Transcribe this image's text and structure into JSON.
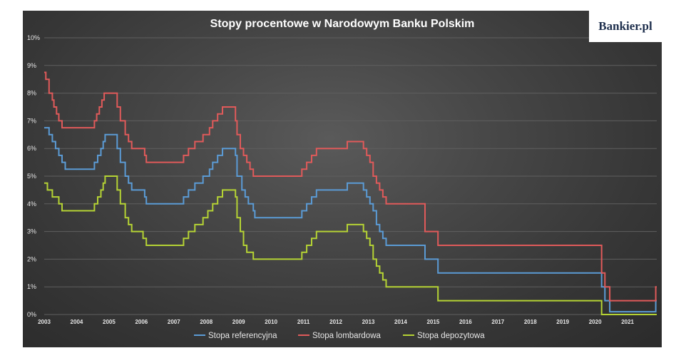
{
  "chart_data": {
    "type": "line",
    "title": "Stopy procentowe w Narodowym Banku Polskim",
    "xlabel": "",
    "ylabel": "",
    "xlim": [
      2003,
      2021.9
    ],
    "ylim": [
      0,
      10
    ],
    "y_ticks": [
      "0%",
      "1%",
      "2%",
      "3%",
      "4%",
      "5%",
      "6%",
      "7%",
      "8%",
      "9%",
      "10%"
    ],
    "x_ticks": [
      "2003",
      "2004",
      "2005",
      "2006",
      "2007",
      "2008",
      "2009",
      "2010",
      "2011",
      "2012",
      "2013",
      "2014",
      "2015",
      "2016",
      "2017",
      "2018",
      "2019",
      "2020",
      "2021"
    ],
    "grid": true,
    "legend_position": "bottom",
    "line_style": "step",
    "series": [
      {
        "name": "Stopa referencyjna",
        "color": "#5b9bd5",
        "points": [
          [
            2003.0,
            6.75
          ],
          [
            2003.15,
            6.5
          ],
          [
            2003.25,
            6.25
          ],
          [
            2003.35,
            6.0
          ],
          [
            2003.45,
            5.75
          ],
          [
            2003.55,
            5.5
          ],
          [
            2003.65,
            5.25
          ],
          [
            2004.55,
            5.5
          ],
          [
            2004.65,
            5.75
          ],
          [
            2004.75,
            6.0
          ],
          [
            2004.82,
            6.25
          ],
          [
            2004.88,
            6.5
          ],
          [
            2005.25,
            6.0
          ],
          [
            2005.35,
            5.5
          ],
          [
            2005.5,
            5.0
          ],
          [
            2005.6,
            4.75
          ],
          [
            2005.7,
            4.5
          ],
          [
            2006.1,
            4.25
          ],
          [
            2006.15,
            4.0
          ],
          [
            2007.3,
            4.25
          ],
          [
            2007.45,
            4.5
          ],
          [
            2007.65,
            4.75
          ],
          [
            2007.9,
            5.0
          ],
          [
            2008.1,
            5.25
          ],
          [
            2008.2,
            5.5
          ],
          [
            2008.35,
            5.75
          ],
          [
            2008.5,
            6.0
          ],
          [
            2008.9,
            5.75
          ],
          [
            2008.95,
            5.0
          ],
          [
            2009.1,
            4.5
          ],
          [
            2009.2,
            4.25
          ],
          [
            2009.3,
            4.0
          ],
          [
            2009.45,
            3.75
          ],
          [
            2009.5,
            3.5
          ],
          [
            2010.95,
            3.75
          ],
          [
            2011.1,
            4.0
          ],
          [
            2011.25,
            4.25
          ],
          [
            2011.4,
            4.5
          ],
          [
            2012.35,
            4.75
          ],
          [
            2012.85,
            4.5
          ],
          [
            2012.95,
            4.25
          ],
          [
            2013.05,
            4.0
          ],
          [
            2013.15,
            3.75
          ],
          [
            2013.25,
            3.25
          ],
          [
            2013.35,
            3.0
          ],
          [
            2013.45,
            2.75
          ],
          [
            2013.55,
            2.5
          ],
          [
            2014.75,
            2.0
          ],
          [
            2015.15,
            1.5
          ],
          [
            2020.2,
            1.0
          ],
          [
            2020.3,
            0.5
          ],
          [
            2020.45,
            0.1
          ],
          [
            2021.8,
            0.1
          ],
          [
            2021.87,
            0.5
          ]
        ]
      },
      {
        "name": "Stopa lombardowa",
        "color": "#e05a5a",
        "points": [
          [
            2003.0,
            8.75
          ],
          [
            2003.05,
            8.5
          ],
          [
            2003.15,
            8.0
          ],
          [
            2003.25,
            7.75
          ],
          [
            2003.3,
            7.5
          ],
          [
            2003.38,
            7.25
          ],
          [
            2003.45,
            7.0
          ],
          [
            2003.55,
            6.75
          ],
          [
            2004.55,
            7.0
          ],
          [
            2004.62,
            7.25
          ],
          [
            2004.7,
            7.5
          ],
          [
            2004.78,
            7.75
          ],
          [
            2004.85,
            8.0
          ],
          [
            2005.25,
            7.5
          ],
          [
            2005.35,
            7.0
          ],
          [
            2005.5,
            6.5
          ],
          [
            2005.6,
            6.25
          ],
          [
            2005.7,
            6.0
          ],
          [
            2006.1,
            5.75
          ],
          [
            2006.15,
            5.5
          ],
          [
            2007.3,
            5.75
          ],
          [
            2007.45,
            6.0
          ],
          [
            2007.65,
            6.25
          ],
          [
            2007.9,
            6.5
          ],
          [
            2008.1,
            6.75
          ],
          [
            2008.2,
            7.0
          ],
          [
            2008.35,
            7.25
          ],
          [
            2008.5,
            7.5
          ],
          [
            2008.9,
            7.0
          ],
          [
            2008.95,
            6.5
          ],
          [
            2009.05,
            6.0
          ],
          [
            2009.15,
            5.75
          ],
          [
            2009.25,
            5.5
          ],
          [
            2009.35,
            5.25
          ],
          [
            2009.45,
            5.0
          ],
          [
            2010.95,
            5.25
          ],
          [
            2011.1,
            5.5
          ],
          [
            2011.25,
            5.75
          ],
          [
            2011.4,
            6.0
          ],
          [
            2012.35,
            6.25
          ],
          [
            2012.85,
            6.0
          ],
          [
            2012.95,
            5.75
          ],
          [
            2013.05,
            5.5
          ],
          [
            2013.15,
            5.0
          ],
          [
            2013.25,
            4.75
          ],
          [
            2013.35,
            4.5
          ],
          [
            2013.45,
            4.25
          ],
          [
            2013.55,
            4.0
          ],
          [
            2014.75,
            3.0
          ],
          [
            2015.15,
            2.5
          ],
          [
            2020.2,
            1.5
          ],
          [
            2020.3,
            1.0
          ],
          [
            2020.45,
            0.5
          ],
          [
            2021.8,
            0.5
          ],
          [
            2021.87,
            1.0
          ]
        ]
      },
      {
        "name": "Stopa depozytowa",
        "color": "#b5d334",
        "points": [
          [
            2003.0,
            4.75
          ],
          [
            2003.1,
            4.5
          ],
          [
            2003.25,
            4.25
          ],
          [
            2003.45,
            4.0
          ],
          [
            2003.55,
            3.75
          ],
          [
            2004.55,
            4.0
          ],
          [
            2004.65,
            4.25
          ],
          [
            2004.75,
            4.5
          ],
          [
            2004.82,
            4.75
          ],
          [
            2004.88,
            5.0
          ],
          [
            2005.25,
            4.5
          ],
          [
            2005.35,
            4.0
          ],
          [
            2005.5,
            3.5
          ],
          [
            2005.6,
            3.25
          ],
          [
            2005.7,
            3.0
          ],
          [
            2006.05,
            2.75
          ],
          [
            2006.15,
            2.5
          ],
          [
            2007.3,
            2.75
          ],
          [
            2007.45,
            3.0
          ],
          [
            2007.65,
            3.25
          ],
          [
            2007.9,
            3.5
          ],
          [
            2008.05,
            3.75
          ],
          [
            2008.2,
            4.0
          ],
          [
            2008.35,
            4.25
          ],
          [
            2008.5,
            4.5
          ],
          [
            2008.9,
            4.25
          ],
          [
            2008.95,
            3.5
          ],
          [
            2009.05,
            3.0
          ],
          [
            2009.15,
            2.5
          ],
          [
            2009.25,
            2.25
          ],
          [
            2009.45,
            2.0
          ],
          [
            2010.95,
            2.25
          ],
          [
            2011.1,
            2.5
          ],
          [
            2011.25,
            2.75
          ],
          [
            2011.4,
            3.0
          ],
          [
            2012.35,
            3.25
          ],
          [
            2012.85,
            3.0
          ],
          [
            2012.95,
            2.75
          ],
          [
            2013.05,
            2.5
          ],
          [
            2013.15,
            2.0
          ],
          [
            2013.25,
            1.75
          ],
          [
            2013.35,
            1.5
          ],
          [
            2013.45,
            1.25
          ],
          [
            2013.55,
            1.0
          ],
          [
            2015.15,
            0.5
          ],
          [
            2020.2,
            0.0
          ],
          [
            2021.9,
            0.0
          ]
        ]
      }
    ]
  },
  "logo": {
    "text": "Bankier.pl"
  }
}
